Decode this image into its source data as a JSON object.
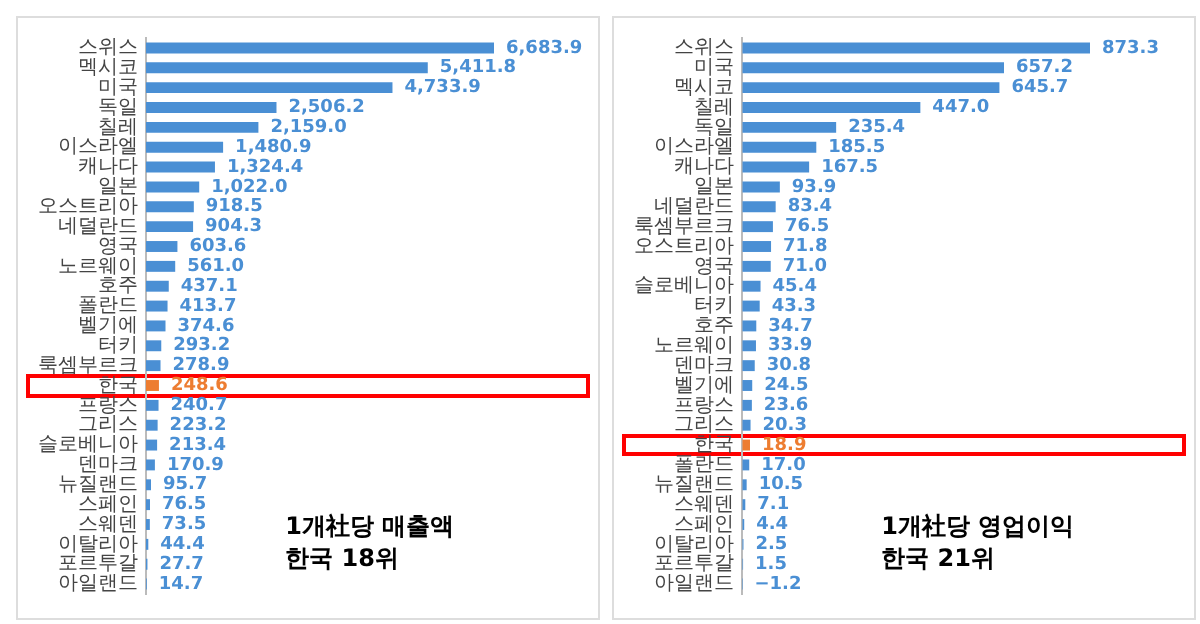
{
  "chart_data": [
    {
      "type": "bar",
      "orientation": "horizontal",
      "categories": [
        "스위스",
        "멕시코",
        "미국",
        "독일",
        "칠레",
        "이스라엘",
        "캐나다",
        "일본",
        "오스트리아",
        "네덜란드",
        "영국",
        "노르웨이",
        "호주",
        "폴란드",
        "벨기에",
        "터키",
        "룩셈부르크",
        "한국",
        "프랑스",
        "그리스",
        "슬로베니아",
        "덴마크",
        "뉴질랜드",
        "스페인",
        "스웨덴",
        "이탈리아",
        "포르투갈",
        "아일랜드"
      ],
      "values": [
        6683.9,
        5411.8,
        4733.9,
        2506.2,
        2159.0,
        1480.9,
        1324.4,
        1022.0,
        918.5,
        904.3,
        603.6,
        561.0,
        437.1,
        413.7,
        374.6,
        293.2,
        278.9,
        248.6,
        240.7,
        223.2,
        213.4,
        170.9,
        95.7,
        76.5,
        73.5,
        44.4,
        27.7,
        14.7
      ],
      "value_labels": [
        "6,683.9",
        "5,411.8",
        "4,733.9",
        "2,506.2",
        "2,159.0",
        "1,480.9",
        "1,324.4",
        "1,022.0",
        "918.5",
        "904.3",
        "603.6",
        "561.0",
        "437.1",
        "413.7",
        "374.6",
        "293.2",
        "278.9",
        "248.6",
        "240.7",
        "223.2",
        "213.4",
        "170.9",
        "95.7",
        "76.5",
        "73.5",
        "44.4",
        "27.7",
        "14.7"
      ],
      "colors": [
        "#4a8fd4",
        "#4a8fd4",
        "#4a8fd4",
        "#4a8fd4",
        "#4a8fd4",
        "#4a8fd4",
        "#4a8fd4",
        "#4a8fd4",
        "#4a8fd4",
        "#4a8fd4",
        "#4a8fd4",
        "#4a8fd4",
        "#4a8fd4",
        "#4a8fd4",
        "#4a8fd4",
        "#4a8fd4",
        "#4a8fd4",
        "#ed7d31",
        "#4a8fd4",
        "#4a8fd4",
        "#4a8fd4",
        "#4a8fd4",
        "#4a8fd4",
        "#4a8fd4",
        "#4a8fd4",
        "#4a8fd4",
        "#4a8fd4",
        "#4a8fd4"
      ],
      "annotations": [
        "1개社당 매출액",
        "한국 18위"
      ],
      "tick_labels": "y",
      "grid": false,
      "legend": false
    },
    {
      "type": "bar",
      "orientation": "horizontal",
      "categories": [
        "스위스",
        "미국",
        "멕시코",
        "칠레",
        "독일",
        "이스라엘",
        "캐나다",
        "일본",
        "네덜란드",
        "룩셈부르크",
        "오스트리아",
        "영국",
        "슬로베니아",
        "터키",
        "호주",
        "노르웨이",
        "덴마크",
        "벨기에",
        "프랑스",
        "그리스",
        "한국",
        "폴란드",
        "뉴질랜드",
        "스웨덴",
        "스페인",
        "이탈리아",
        "포르투갈",
        "아일랜드"
      ],
      "values": [
        873.3,
        657.2,
        645.7,
        447.0,
        235.4,
        185.5,
        167.5,
        93.9,
        83.4,
        76.5,
        71.8,
        71.0,
        45.4,
        43.3,
        34.7,
        33.9,
        30.8,
        24.5,
        23.6,
        20.3,
        18.9,
        17.0,
        10.5,
        7.1,
        4.4,
        2.5,
        1.5,
        -1.2
      ],
      "value_labels": [
        "873.3",
        "657.2",
        "645.7",
        "447.0",
        "235.4",
        "185.5",
        "167.5",
        "93.9",
        "83.4",
        "76.5",
        "71.8",
        "71.0",
        "45.4",
        "43.3",
        "34.7",
        "33.9",
        "30.8",
        "24.5",
        "23.6",
        "20.3",
        "18.9",
        "17.0",
        "10.5",
        "7.1",
        "4.4",
        "2.5",
        "1.5",
        "−1.2"
      ],
      "colors": [
        "#4a8fd4",
        "#4a8fd4",
        "#4a8fd4",
        "#4a8fd4",
        "#4a8fd4",
        "#4a8fd4",
        "#4a8fd4",
        "#4a8fd4",
        "#4a8fd4",
        "#4a8fd4",
        "#4a8fd4",
        "#4a8fd4",
        "#4a8fd4",
        "#4a8fd4",
        "#4a8fd4",
        "#4a8fd4",
        "#4a8fd4",
        "#4a8fd4",
        "#4a8fd4",
        "#4a8fd4",
        "#ed7d31",
        "#4a8fd4",
        "#4a8fd4",
        "#4a8fd4",
        "#4a8fd4",
        "#4a8fd4",
        "#4a8fd4",
        "#4a8fd4"
      ],
      "annotations": [
        "1개社당 영업이익",
        "한국 21위"
      ],
      "tick_labels": "y",
      "grid": false,
      "legend": false
    }
  ]
}
